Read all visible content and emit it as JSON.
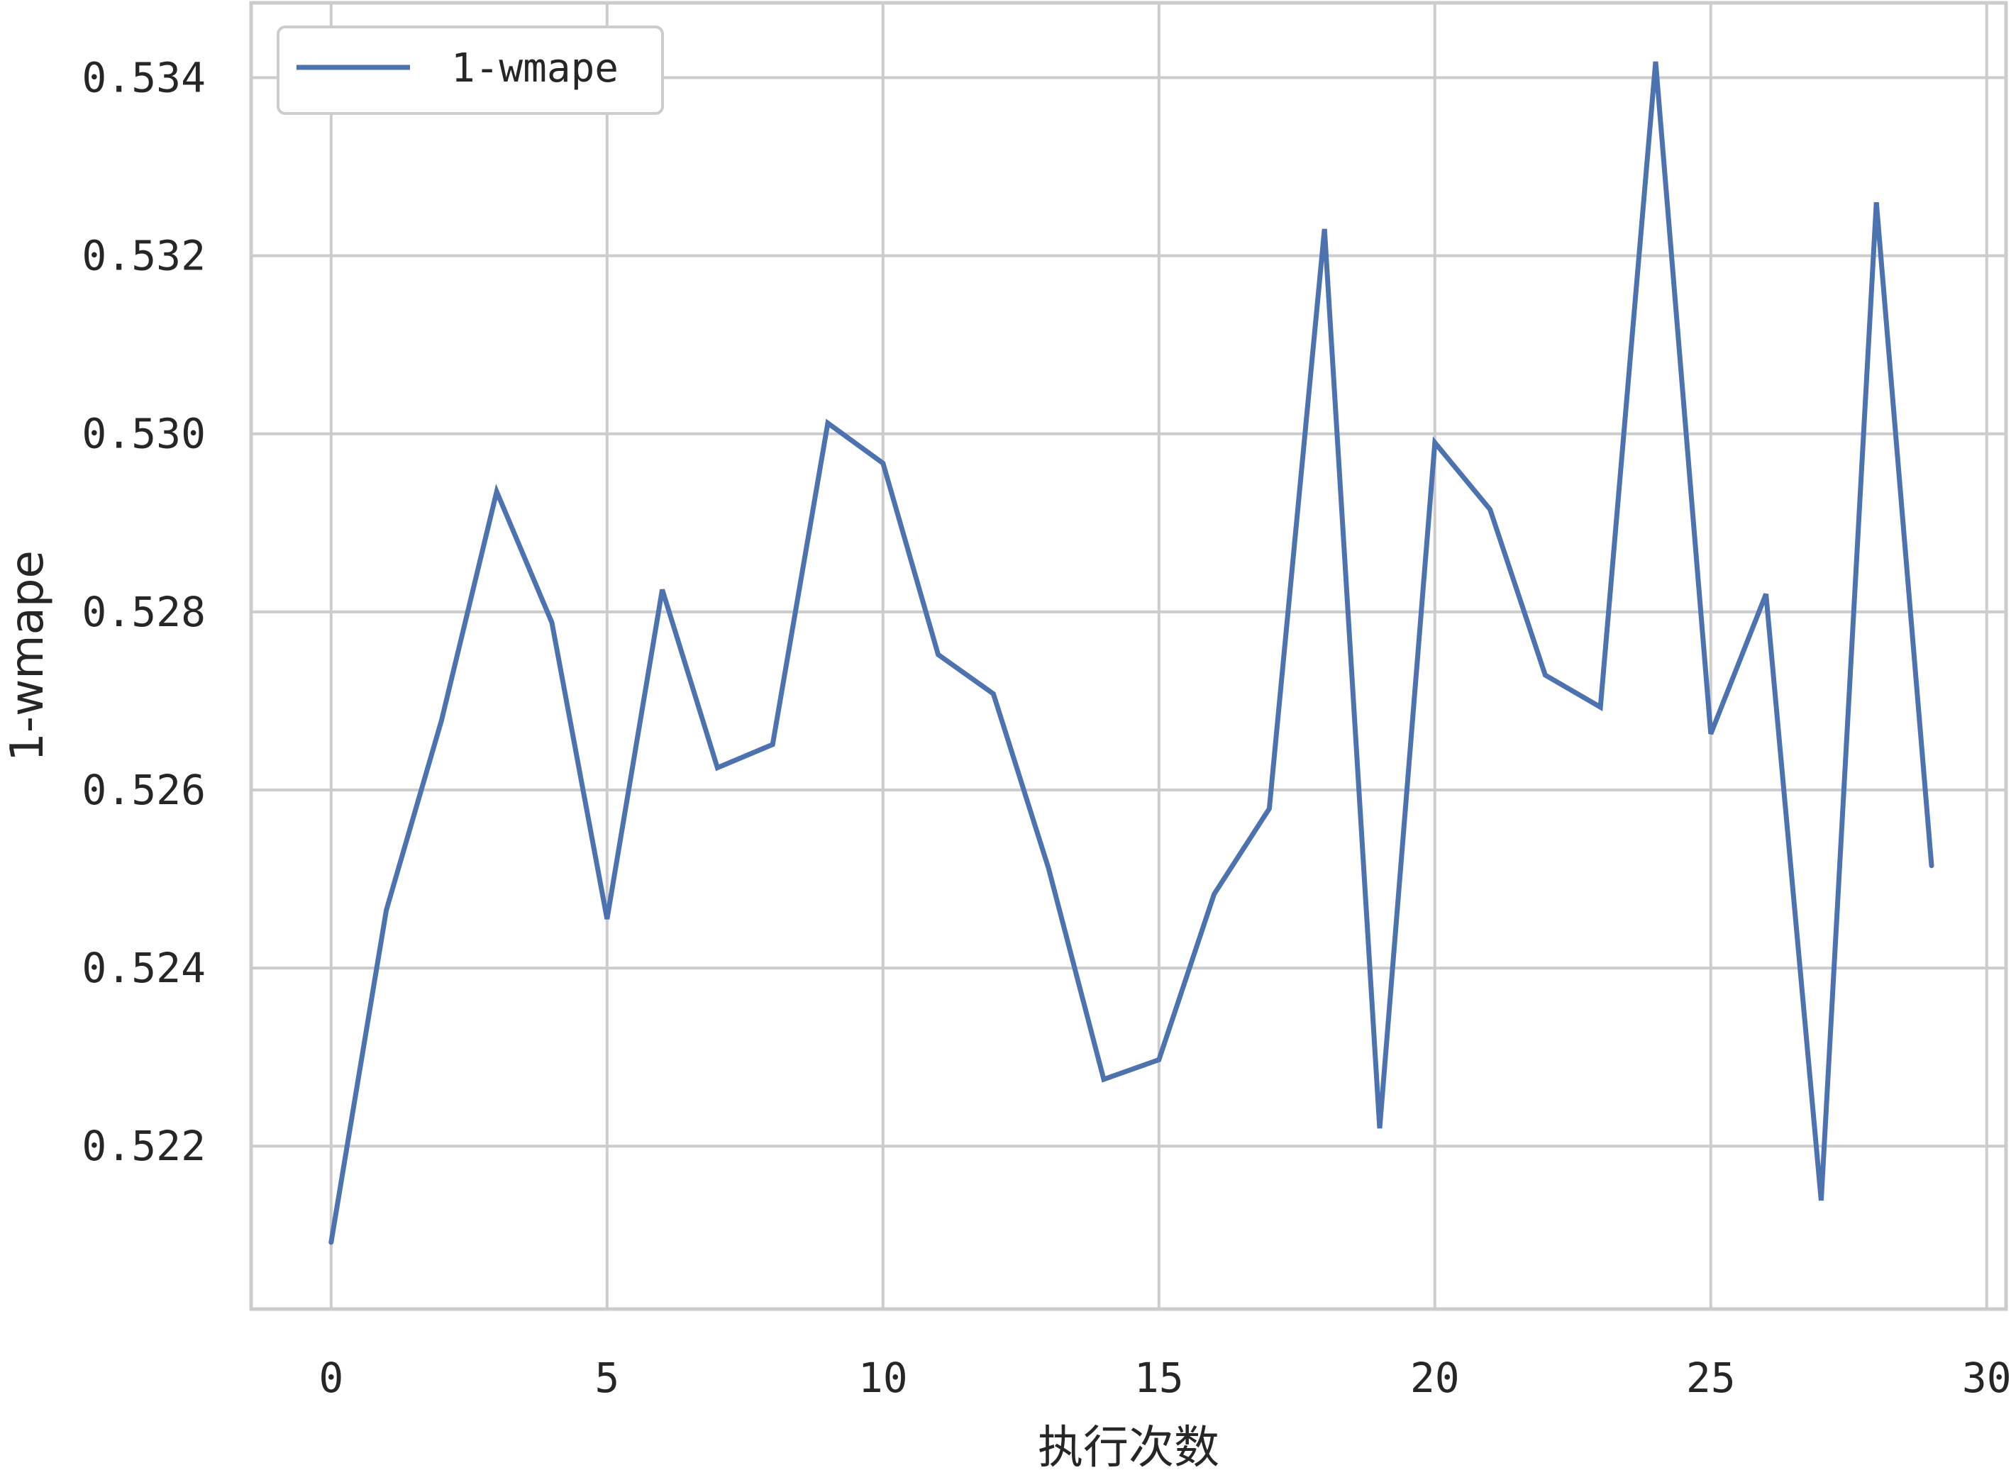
{
  "chart_data": {
    "type": "line",
    "xlabel": "执行次数",
    "ylabel": "1-wmape",
    "xlim": [
      -1.45,
      30.35
    ],
    "ylim": [
      0.52017,
      0.53484
    ],
    "xticks": [
      0,
      5,
      10,
      15,
      20,
      25,
      30
    ],
    "yticks": [
      0.522,
      0.524,
      0.526,
      0.528,
      0.53,
      0.532,
      0.534
    ],
    "xtick_labels": [
      "0",
      "5",
      "10",
      "15",
      "20",
      "25",
      "30"
    ],
    "ytick_labels": [
      "0.522",
      "0.524",
      "0.526",
      "0.528",
      "0.530",
      "0.532",
      "0.534"
    ],
    "grid": true,
    "legend_position": "top-left",
    "series": [
      {
        "name": "1-wmape",
        "color": "#4C72B0",
        "x": [
          0,
          1,
          2,
          3,
          4,
          5,
          6,
          7,
          8,
          9,
          10,
          11,
          12,
          13,
          14,
          15,
          16,
          17,
          18,
          19,
          20,
          21,
          22,
          23,
          24,
          25,
          26,
          27,
          28,
          29
        ],
        "values": [
          0.52092,
          0.52465,
          0.52678,
          0.52935,
          0.52788,
          0.52455,
          0.52825,
          0.52625,
          0.52651,
          0.53012,
          0.52967,
          0.52752,
          0.52708,
          0.52512,
          0.52275,
          0.52297,
          0.52483,
          0.52579,
          0.5323,
          0.5222,
          0.5299,
          0.52915,
          0.52729,
          0.52693,
          0.53418,
          0.52663,
          0.5282,
          0.52139,
          0.5326,
          0.52515
        ]
      }
    ]
  }
}
